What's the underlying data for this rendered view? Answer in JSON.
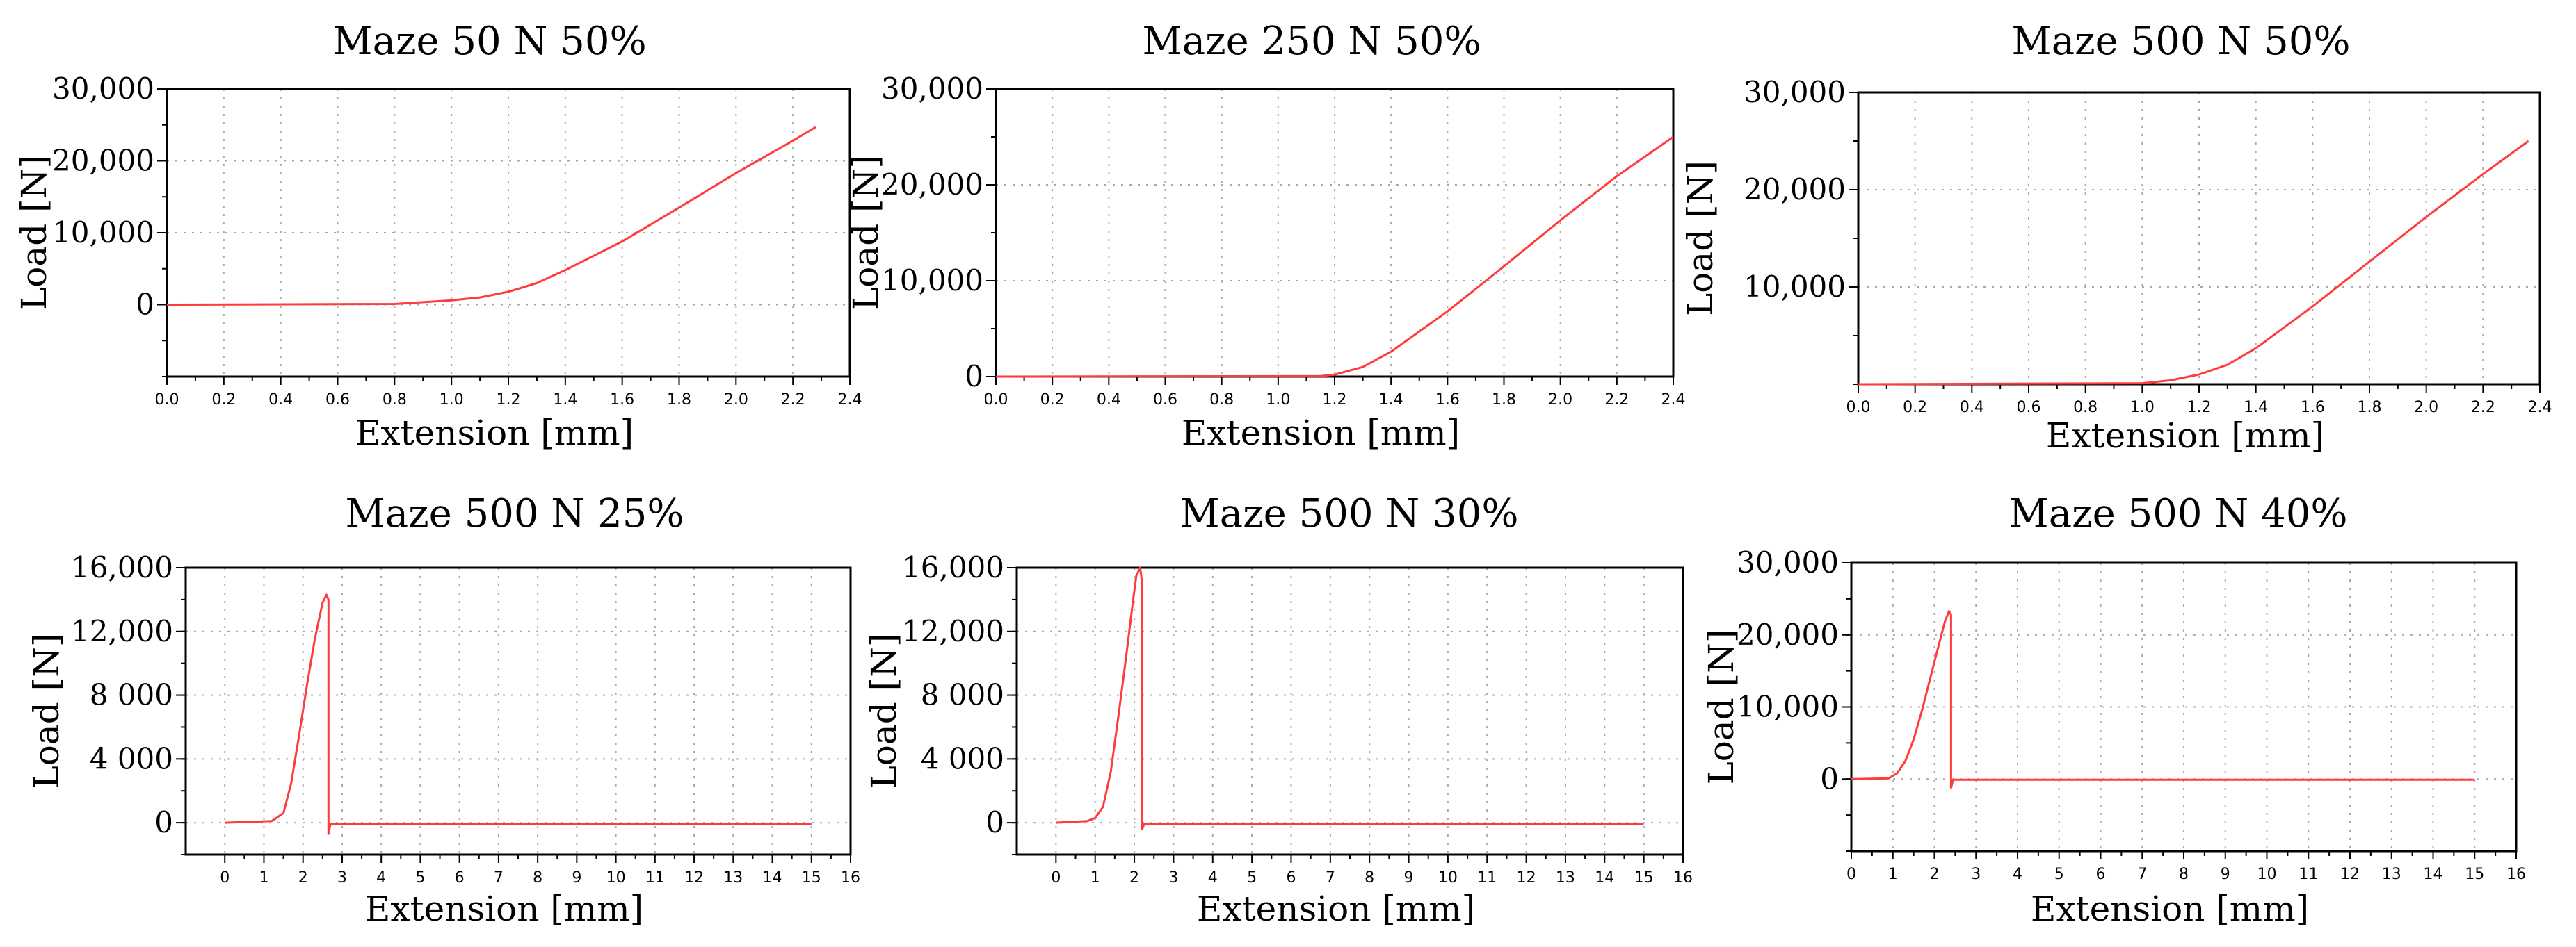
{
  "colors": {
    "series": "#ff3b3b",
    "grid": "#a8a8a8",
    "axis": "#000000"
  },
  "chart_data": [
    {
      "type": "line",
      "title": "Maze 50 N 50%",
      "xlabel": "Extension [mm]",
      "ylabel": "Load [N]",
      "xlim": [
        0,
        2.4
      ],
      "ylim": [
        -10000,
        30000
      ],
      "xticks": [
        0,
        0.2,
        0.4,
        0.6,
        0.8,
        1.0,
        1.2,
        1.4,
        1.6,
        1.8,
        2.0,
        2.2,
        2.4
      ],
      "xtick_labels": [
        "0.0",
        "0.2",
        "0.4",
        "0.6",
        "0.8",
        "1.0",
        "1.2",
        "1.4",
        "1.6",
        "1.8",
        "2.0",
        "2.2",
        "2.4"
      ],
      "yticks": [
        0,
        10000,
        20000,
        30000
      ],
      "ytick_labels": [
        "0",
        "10,000",
        "20,000",
        "30,000"
      ],
      "grid": true,
      "series": [
        {
          "name": "Load",
          "x": [
            0,
            0.8,
            1.0,
            1.1,
            1.2,
            1.3,
            1.4,
            1.6,
            1.8,
            2.0,
            2.2,
            2.28
          ],
          "y": [
            0,
            100,
            600,
            1000,
            1800,
            3000,
            4800,
            8800,
            13500,
            18300,
            22800,
            24700
          ]
        }
      ]
    },
    {
      "type": "line",
      "title": "Maze 250 N 50%",
      "xlabel": "Extension [mm]",
      "ylabel": "Load [N]",
      "xlim": [
        0,
        2.4
      ],
      "ylim": [
        0,
        30000
      ],
      "xticks": [
        0,
        0.2,
        0.4,
        0.6,
        0.8,
        1.0,
        1.2,
        1.4,
        1.6,
        1.8,
        2.0,
        2.2,
        2.4
      ],
      "xtick_labels": [
        "0.0",
        "0.2",
        "0.4",
        "0.6",
        "0.8",
        "1.0",
        "1.2",
        "1.4",
        "1.6",
        "1.8",
        "2.0",
        "2.2",
        "2.4"
      ],
      "yticks": [
        0,
        10000,
        20000,
        30000
      ],
      "ytick_labels": [
        "0",
        "10,000",
        "20,000",
        "30,000"
      ],
      "grid": true,
      "series": [
        {
          "name": "Load",
          "x": [
            0,
            1.15,
            1.2,
            1.3,
            1.4,
            1.6,
            1.8,
            2.0,
            2.2,
            2.4
          ],
          "y": [
            0,
            50,
            200,
            1000,
            2600,
            6800,
            11500,
            16300,
            20900,
            25000
          ]
        }
      ]
    },
    {
      "type": "line",
      "title": "Maze 500 N 50%",
      "xlabel": "Extension [mm]",
      "ylabel": "Load [N]",
      "xlim": [
        0,
        2.4
      ],
      "ylim": [
        0,
        30000
      ],
      "xticks": [
        0,
        0.2,
        0.4,
        0.6,
        0.8,
        1.0,
        1.2,
        1.4,
        1.6,
        1.8,
        2.0,
        2.2,
        2.4
      ],
      "xtick_labels": [
        "0.0",
        "0.2",
        "0.4",
        "0.6",
        "0.8",
        "1.0",
        "1.2",
        "1.4",
        "1.6",
        "1.8",
        "2.0",
        "2.2",
        "2.4"
      ],
      "yticks": [
        10000,
        20000,
        30000
      ],
      "ytick_labels": [
        "10,000",
        "20,000",
        "30,000"
      ],
      "grid": true,
      "series": [
        {
          "name": "Load",
          "x": [
            0,
            1.0,
            1.1,
            1.2,
            1.3,
            1.4,
            1.6,
            1.8,
            2.0,
            2.2,
            2.36
          ],
          "y": [
            0,
            100,
            400,
            1000,
            2000,
            3700,
            8000,
            12600,
            17200,
            21600,
            25000
          ]
        }
      ]
    },
    {
      "type": "line",
      "title": "Maze 500 N 25%",
      "xlabel": "Extension [mm]",
      "ylabel": "Load [N]",
      "xlim": [
        -1,
        16
      ],
      "ylim": [
        -2000,
        16000
      ],
      "xticks": [
        0,
        1,
        2,
        3,
        4,
        5,
        6,
        7,
        8,
        9,
        10,
        11,
        12,
        13,
        14,
        15,
        16
      ],
      "xtick_labels": [
        "0",
        "1",
        "2",
        "3",
        "4",
        "5",
        "6",
        "7",
        "8",
        "9",
        "10",
        "11",
        "12",
        "13",
        "14",
        "15",
        "16"
      ],
      "yticks": [
        0,
        4000,
        8000,
        12000,
        16000
      ],
      "ytick_labels": [
        "0",
        "4 000",
        "8 000",
        "12,000",
        "16,000"
      ],
      "grid": true,
      "series": [
        {
          "name": "Load",
          "x": [
            0,
            1.2,
            1.5,
            1.7,
            1.9,
            2.1,
            2.3,
            2.5,
            2.6,
            2.65,
            2.65,
            2.7,
            15
          ],
          "y": [
            0,
            100,
            600,
            2500,
            5500,
            8600,
            11500,
            13800,
            14300,
            14000,
            -700,
            -100,
            -100
          ]
        }
      ]
    },
    {
      "type": "line",
      "title": "Maze 500 N 30%",
      "xlabel": "Extension [mm]",
      "ylabel": "Load [N]",
      "xlim": [
        -1,
        16
      ],
      "ylim": [
        -2000,
        16000
      ],
      "xticks": [
        0,
        1,
        2,
        3,
        4,
        5,
        6,
        7,
        8,
        9,
        10,
        11,
        12,
        13,
        14,
        15,
        16
      ],
      "xtick_labels": [
        "0",
        "1",
        "2",
        "3",
        "4",
        "5",
        "6",
        "7",
        "8",
        "9",
        "10",
        "11",
        "12",
        "13",
        "14",
        "15",
        "16"
      ],
      "yticks": [
        0,
        4000,
        8000,
        12000,
        16000
      ],
      "ytick_labels": [
        "0",
        "4 000",
        "8 000",
        "12,000",
        "16,000"
      ],
      "grid": true,
      "series": [
        {
          "name": "Load",
          "x": [
            0,
            0.8,
            1.0,
            1.2,
            1.4,
            1.6,
            1.8,
            1.95,
            2.05,
            2.15,
            2.2,
            2.2,
            2.25,
            15
          ],
          "y": [
            0,
            100,
            300,
            1000,
            3200,
            6800,
            10600,
            13600,
            15500,
            16000,
            15000,
            -400,
            -100,
            -100
          ]
        }
      ]
    },
    {
      "type": "line",
      "title": "Maze 500 N 40%",
      "xlabel": "Extension [mm]",
      "ylabel": "Load [N]",
      "xlim": [
        0,
        16
      ],
      "ylim": [
        -10000,
        30000
      ],
      "xticks": [
        0,
        1,
        2,
        3,
        4,
        5,
        6,
        7,
        8,
        9,
        10,
        11,
        12,
        13,
        14,
        15,
        16
      ],
      "xtick_labels": [
        "0",
        "1",
        "2",
        "3",
        "4",
        "5",
        "6",
        "7",
        "8",
        "9",
        "10",
        "11",
        "12",
        "13",
        "14",
        "15",
        "16"
      ],
      "yticks": [
        0,
        10000,
        20000,
        30000
      ],
      "ytick_labels": [
        "0",
        "10,000",
        "20,000",
        "30,000"
      ],
      "grid": true,
      "series": [
        {
          "name": "Load",
          "x": [
            0,
            0.9,
            1.1,
            1.3,
            1.5,
            1.7,
            1.9,
            2.1,
            2.25,
            2.35,
            2.4,
            2.4,
            2.45,
            15
          ],
          "y": [
            0,
            100,
            800,
            2500,
            5500,
            9500,
            14000,
            18500,
            21800,
            23300,
            22800,
            -1200,
            -100,
            -100
          ]
        }
      ]
    }
  ]
}
